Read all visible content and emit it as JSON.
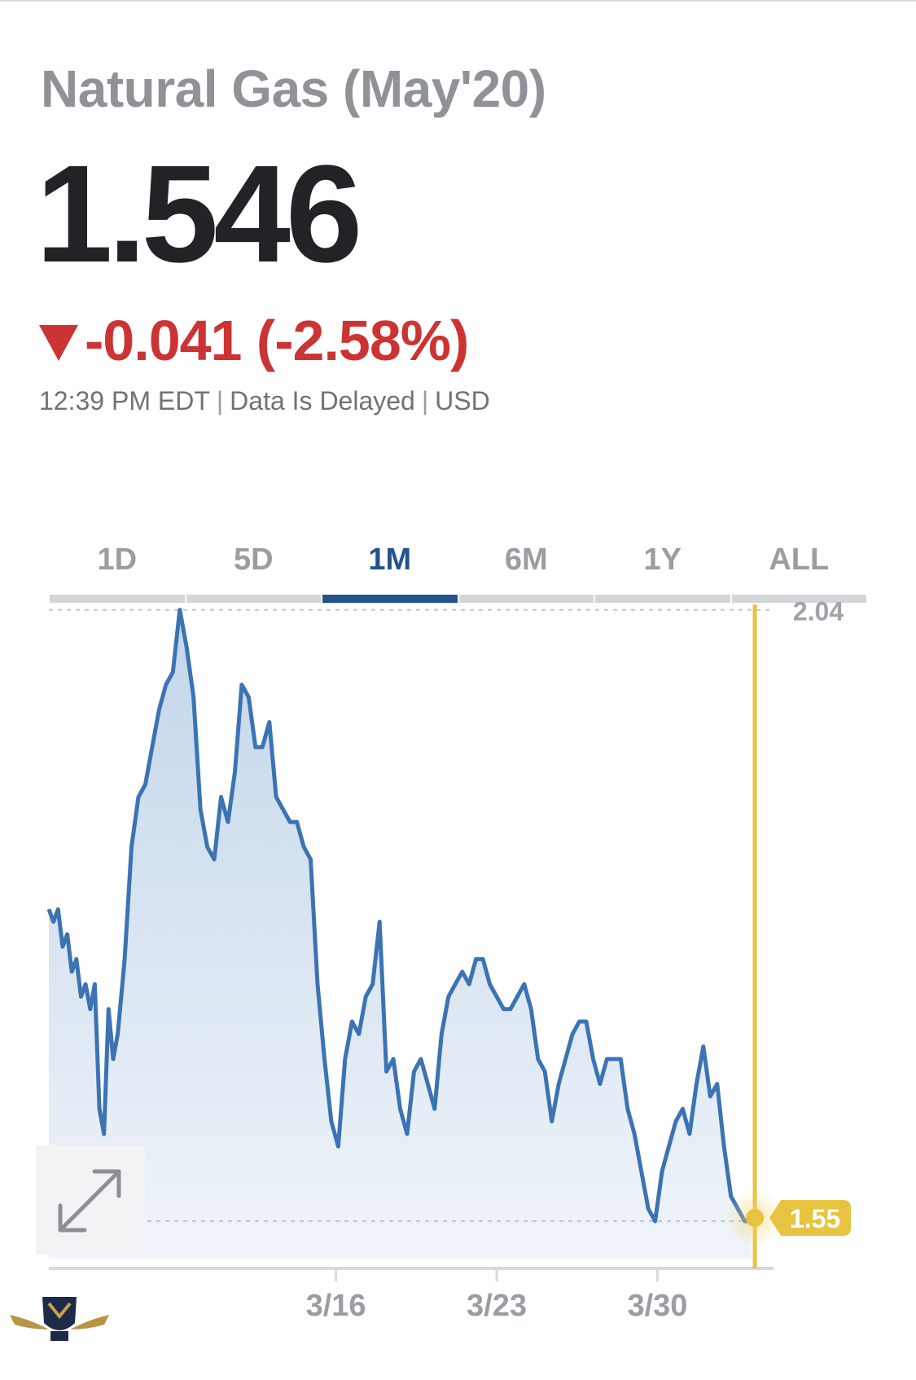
{
  "header": {
    "title": "Natural Gas (May'20)",
    "price": "1.546",
    "change": "-0.041 (-2.58%)",
    "time": "12:39 PM EDT",
    "delay_note": "Data Is Delayed",
    "currency": "USD"
  },
  "colors": {
    "accent": "#21538f",
    "line": "#3b73b3",
    "negative": "#cc3333",
    "cursor": "#e8c341"
  },
  "tabs": [
    {
      "label": "1D",
      "active": false
    },
    {
      "label": "5D",
      "active": false
    },
    {
      "label": "1M",
      "active": true
    },
    {
      "label": "6M",
      "active": false
    },
    {
      "label": "1Y",
      "active": false
    },
    {
      "label": "ALL",
      "active": false
    }
  ],
  "chart_data": {
    "type": "area",
    "x_tick_labels": [
      "3/16",
      "3/23",
      "3/30"
    ],
    "x_ticks": [
      12.5,
      19.5,
      26.5
    ],
    "xlim": [
      0,
      31.2
    ],
    "ylim": [
      1.52,
      2.06
    ],
    "high_label": "2.04",
    "high_value": 2.04,
    "last_label": "1.55",
    "last_value": 1.55,
    "grid": false,
    "series": [
      {
        "x": [
          0.0,
          0.2,
          0.4,
          0.6,
          0.8,
          1.0,
          1.2,
          1.4,
          1.6,
          1.8,
          2.0,
          2.2,
          2.4,
          2.6,
          2.8,
          3.0,
          3.3,
          3.6,
          3.9,
          4.2,
          4.5,
          4.8,
          5.1,
          5.4,
          5.7,
          6.0,
          6.3,
          6.6,
          6.9,
          7.2,
          7.5,
          7.8,
          8.1,
          8.4,
          8.7,
          9.0,
          9.3,
          9.6,
          9.9,
          10.2,
          10.5,
          10.8,
          11.1,
          11.4,
          11.7,
          12.0,
          12.3,
          12.6,
          12.9,
          13.2,
          13.5,
          13.8,
          14.1,
          14.4,
          14.7,
          15.0,
          15.3,
          15.6,
          15.9,
          16.2,
          16.5,
          16.8,
          17.1,
          17.4,
          17.7,
          18.0,
          18.3,
          18.6,
          18.9,
          19.2,
          19.5,
          19.8,
          20.1,
          20.4,
          20.7,
          21.0,
          21.3,
          21.6,
          21.9,
          22.2,
          22.5,
          22.8,
          23.1,
          23.4,
          23.7,
          24.0,
          24.3,
          24.6,
          24.9,
          25.2,
          25.5,
          25.8,
          26.1,
          26.4,
          26.7,
          27.0,
          27.3,
          27.6,
          27.9,
          28.2,
          28.5,
          28.8,
          29.1,
          29.4,
          29.7,
          30.0,
          30.3,
          30.6
        ],
        "values": [
          1.8,
          1.79,
          1.8,
          1.77,
          1.78,
          1.75,
          1.76,
          1.73,
          1.74,
          1.72,
          1.74,
          1.64,
          1.62,
          1.72,
          1.68,
          1.7,
          1.76,
          1.85,
          1.89,
          1.9,
          1.93,
          1.96,
          1.98,
          1.99,
          2.04,
          2.01,
          1.97,
          1.88,
          1.85,
          1.84,
          1.89,
          1.87,
          1.91,
          1.98,
          1.97,
          1.93,
          1.93,
          1.95,
          1.89,
          1.88,
          1.87,
          1.87,
          1.85,
          1.84,
          1.74,
          1.68,
          1.63,
          1.61,
          1.68,
          1.71,
          1.7,
          1.73,
          1.74,
          1.79,
          1.67,
          1.68,
          1.64,
          1.62,
          1.67,
          1.68,
          1.66,
          1.64,
          1.7,
          1.73,
          1.74,
          1.75,
          1.74,
          1.76,
          1.76,
          1.74,
          1.73,
          1.72,
          1.72,
          1.73,
          1.74,
          1.72,
          1.68,
          1.67,
          1.63,
          1.66,
          1.68,
          1.7,
          1.71,
          1.71,
          1.68,
          1.66,
          1.68,
          1.68,
          1.68,
          1.64,
          1.62,
          1.59,
          1.56,
          1.55,
          1.59,
          1.61,
          1.63,
          1.64,
          1.62,
          1.66,
          1.69,
          1.65,
          1.66,
          1.61,
          1.57,
          1.56,
          1.55,
          1.55
        ]
      }
    ]
  }
}
